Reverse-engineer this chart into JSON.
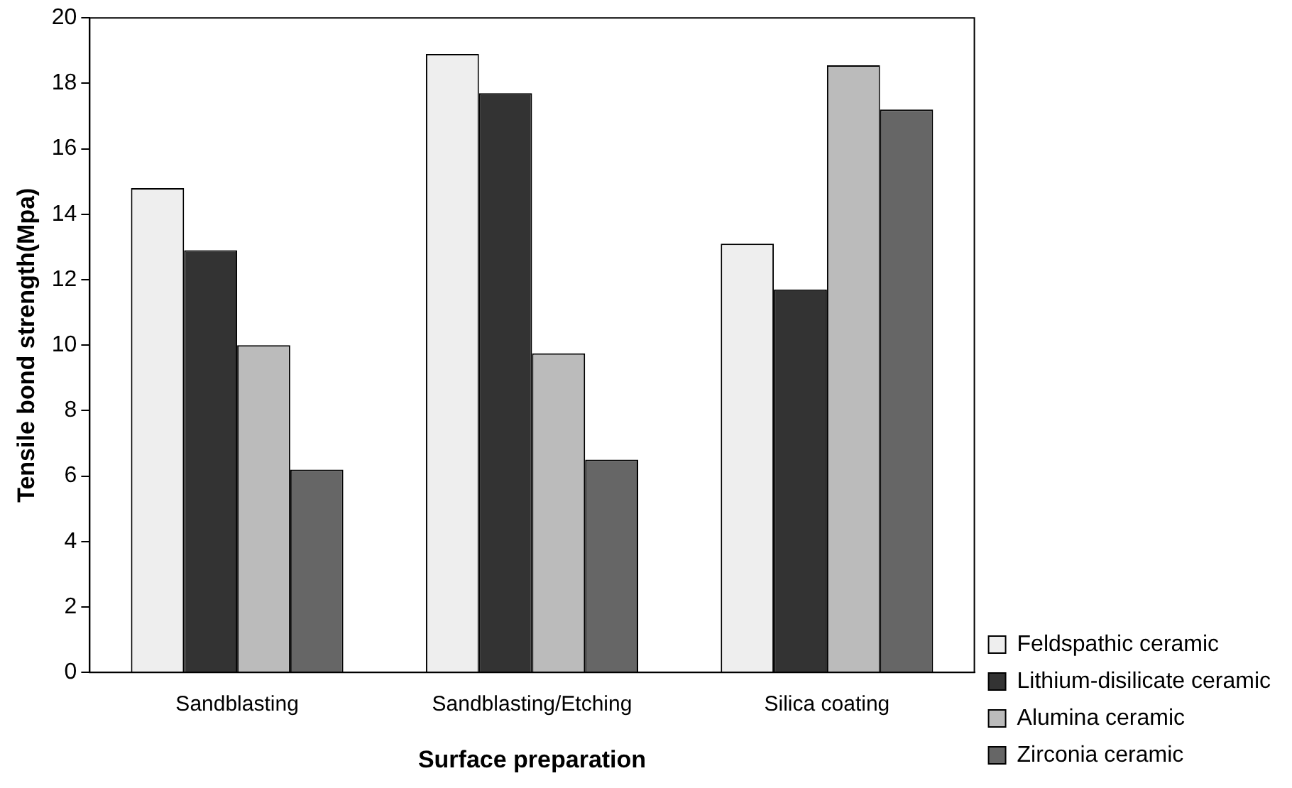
{
  "chart_data": {
    "type": "bar",
    "xlabel": "Surface preparation",
    "ylabel": "Tensile bond strength(Mpa)",
    "categories": [
      "Sandblasting",
      "Sandblasting/Etching",
      "Silica coating"
    ],
    "series": [
      {
        "name": "Feldspathic ceramic",
        "color": "#eeeeee",
        "values": [
          14.8,
          18.9,
          13.1
        ]
      },
      {
        "name": "Lithium-disilicate ceramic",
        "color": "#333333",
        "values": [
          12.9,
          17.7,
          11.7
        ]
      },
      {
        "name": "Alumina ceramic",
        "color": "#bbbbbb",
        "values": [
          10.0,
          9.75,
          18.55
        ]
      },
      {
        "name": "Zirconia ceramic",
        "color": "#666666",
        "values": [
          6.2,
          6.5,
          17.2
        ]
      }
    ],
    "ylim": [
      0,
      20
    ],
    "yticks": [
      0,
      2,
      4,
      6,
      8,
      10,
      12,
      14,
      16,
      18,
      20
    ],
    "grid": false,
    "legend": "bottom right"
  }
}
